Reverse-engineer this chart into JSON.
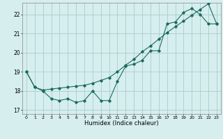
{
  "xlabel": "Humidex (Indice chaleur)",
  "xlim": [
    -0.5,
    23.5
  ],
  "ylim": [
    16.8,
    22.6
  ],
  "yticks": [
    17,
    18,
    19,
    20,
    21,
    22
  ],
  "xticks": [
    0,
    1,
    2,
    3,
    4,
    5,
    6,
    7,
    8,
    9,
    10,
    11,
    12,
    13,
    14,
    15,
    16,
    17,
    18,
    19,
    20,
    21,
    22,
    23
  ],
  "bg_color": "#d6eeee",
  "grid_color": "#aacccc",
  "line_color": "#1a6b5a",
  "line1_x": [
    0,
    1,
    2,
    3,
    4,
    5,
    6,
    7,
    8,
    9,
    10,
    11,
    12,
    13,
    14,
    15,
    16,
    17,
    18,
    19,
    20,
    21,
    22,
    23
  ],
  "line1_y": [
    19.0,
    18.2,
    18.0,
    17.6,
    17.5,
    17.6,
    17.4,
    17.5,
    18.0,
    17.5,
    17.5,
    18.5,
    19.3,
    19.4,
    19.6,
    20.1,
    20.1,
    21.5,
    21.6,
    22.1,
    22.3,
    22.0,
    21.5,
    21.5
  ],
  "line2_x": [
    0,
    1,
    2,
    3,
    4,
    5,
    6,
    7,
    8,
    9,
    10,
    11,
    12,
    13,
    14,
    15,
    16,
    17,
    18,
    19,
    20,
    21,
    22,
    23
  ],
  "line2_y": [
    19.0,
    18.2,
    18.05,
    18.1,
    18.15,
    18.2,
    18.25,
    18.3,
    18.4,
    18.55,
    18.7,
    19.0,
    19.35,
    19.65,
    20.05,
    20.35,
    20.7,
    21.05,
    21.35,
    21.65,
    21.95,
    22.25,
    22.55,
    21.5
  ]
}
